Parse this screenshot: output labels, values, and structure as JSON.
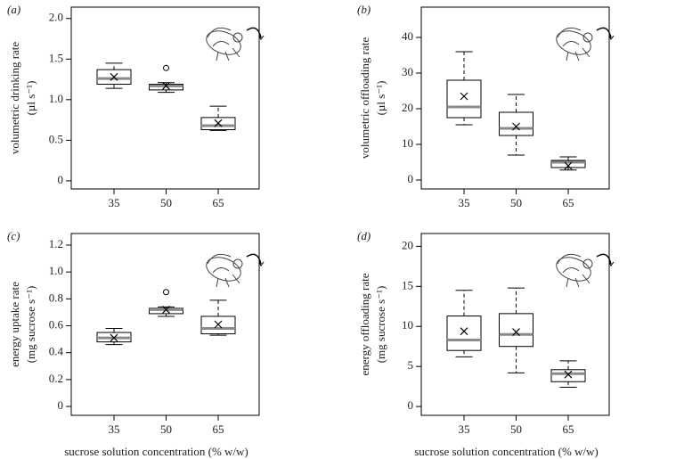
{
  "chart_data": [
    {
      "type": "box",
      "label": "(a)",
      "ylabel": "volumetric drinking rate",
      "yunit": "(µl s⁻¹)",
      "categories": [
        "35",
        "50",
        "65"
      ],
      "boxes": [
        {
          "whisker_low": 1.14,
          "q1": 1.19,
          "median": 1.26,
          "q3": 1.37,
          "whisker_high": 1.45,
          "mean": 1.28
        },
        {
          "whisker_low": 1.09,
          "q1": 1.12,
          "median": 1.17,
          "q3": 1.19,
          "whisker_high": 1.21,
          "mean": 1.17,
          "outliers": [
            1.39
          ]
        },
        {
          "whisker_low": 0.62,
          "q1": 0.63,
          "median": 0.68,
          "q3": 0.78,
          "whisker_high": 0.92,
          "mean": 0.71
        }
      ],
      "ylim": [
        -0.1,
        2.14
      ],
      "yticks": [
        0,
        0.5,
        {
          "value": 1,
          "label": "1.0"
        },
        1.5,
        {
          "value": 2,
          "label": "2.0"
        }
      ]
    },
    {
      "type": "box",
      "label": "(b)",
      "ylabel": "volumetric offloading rate",
      "yunit": "(µl s⁻¹)",
      "categories": [
        "35",
        "50",
        "65"
      ],
      "boxes": [
        {
          "whisker_low": 15.5,
          "q1": 17.5,
          "median": 20.5,
          "q3": 28,
          "whisker_high": 36,
          "mean": 23.5
        },
        {
          "whisker_low": 7,
          "q1": 12.5,
          "median": 14.5,
          "q3": 19,
          "whisker_high": 24,
          "mean": 15
        },
        {
          "whisker_low": 2.8,
          "q1": 3.5,
          "median": 5,
          "q3": 5.5,
          "whisker_high": 6.5,
          "mean": 4
        }
      ],
      "ylim": [
        -2.5,
        48.5
      ],
      "yticks": [
        0,
        10,
        20,
        30,
        40
      ]
    },
    {
      "type": "box",
      "label": "(c)",
      "ylabel": "energy uptake rate",
      "yunit": "(mg sucrose s⁻¹)",
      "xlabel": "sucrose solution concentration (% w/w)",
      "categories": [
        "35",
        "50",
        "65"
      ],
      "boxes": [
        {
          "whisker_low": 0.46,
          "q1": 0.48,
          "median": 0.51,
          "q3": 0.55,
          "whisker_high": 0.58,
          "mean": 0.51
        },
        {
          "whisker_low": 0.67,
          "q1": 0.69,
          "median": 0.72,
          "q3": 0.73,
          "whisker_high": 0.74,
          "mean": 0.72,
          "outliers": [
            0.85
          ]
        },
        {
          "whisker_low": 0.53,
          "q1": 0.54,
          "median": 0.58,
          "q3": 0.67,
          "whisker_high": 0.79,
          "mean": 0.61
        }
      ],
      "ylim": [
        -0.066,
        1.286
      ],
      "yticks": [
        0,
        0.2,
        0.4,
        0.6,
        0.8,
        {
          "value": 1,
          "label": "1.0"
        },
        1.2
      ]
    },
    {
      "type": "box",
      "label": "(d)",
      "ylabel": "energy offloading rate",
      "yunit": "(mg sucrose s⁻¹)",
      "xlabel": "sucrose solution concentration (% w/w)",
      "categories": [
        "35",
        "50",
        "65"
      ],
      "boxes": [
        {
          "whisker_low": 6.2,
          "q1": 7,
          "median": 8.3,
          "q3": 11.3,
          "whisker_high": 14.5,
          "mean": 9.4
        },
        {
          "whisker_low": 4.2,
          "q1": 7.5,
          "median": 9,
          "q3": 11.6,
          "whisker_high": 14.8,
          "mean": 9.3
        },
        {
          "whisker_low": 2.4,
          "q1": 3.1,
          "median": 4.1,
          "q3": 4.6,
          "whisker_high": 5.7,
          "mean": 4
        }
      ],
      "ylim": [
        -1.1,
        21.6
      ],
      "yticks": [
        0,
        5,
        10,
        15,
        20
      ]
    }
  ]
}
